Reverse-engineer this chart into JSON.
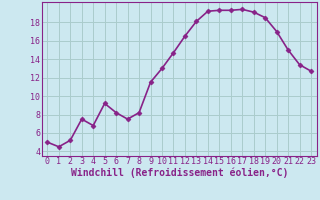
{
  "x": [
    0,
    1,
    2,
    3,
    4,
    5,
    6,
    7,
    8,
    9,
    10,
    11,
    12,
    13,
    14,
    15,
    16,
    17,
    18,
    19,
    20,
    21,
    22,
    23
  ],
  "y": [
    5.0,
    4.5,
    5.2,
    7.5,
    6.8,
    9.2,
    8.2,
    7.5,
    8.2,
    11.5,
    13.0,
    14.7,
    16.5,
    18.1,
    19.2,
    19.3,
    19.3,
    19.4,
    19.1,
    18.5,
    17.0,
    15.0,
    13.4,
    12.7
  ],
  "line_color": "#882288",
  "marker": "D",
  "marker_size": 2.5,
  "bg_color": "#cce8f0",
  "grid_color": "#aacccc",
  "xlabel": "Windchill (Refroidissement éolien,°C)",
  "xlim": [
    -0.5,
    23.5
  ],
  "ylim": [
    3.5,
    20.2
  ],
  "yticks": [
    4,
    6,
    8,
    10,
    12,
    14,
    16,
    18
  ],
  "xticks": [
    0,
    1,
    2,
    3,
    4,
    5,
    6,
    7,
    8,
    9,
    10,
    11,
    12,
    13,
    14,
    15,
    16,
    17,
    18,
    19,
    20,
    21,
    22,
    23
  ],
  "tick_fontsize": 6.0,
  "xlabel_fontsize": 7.0,
  "line_width": 1.2
}
